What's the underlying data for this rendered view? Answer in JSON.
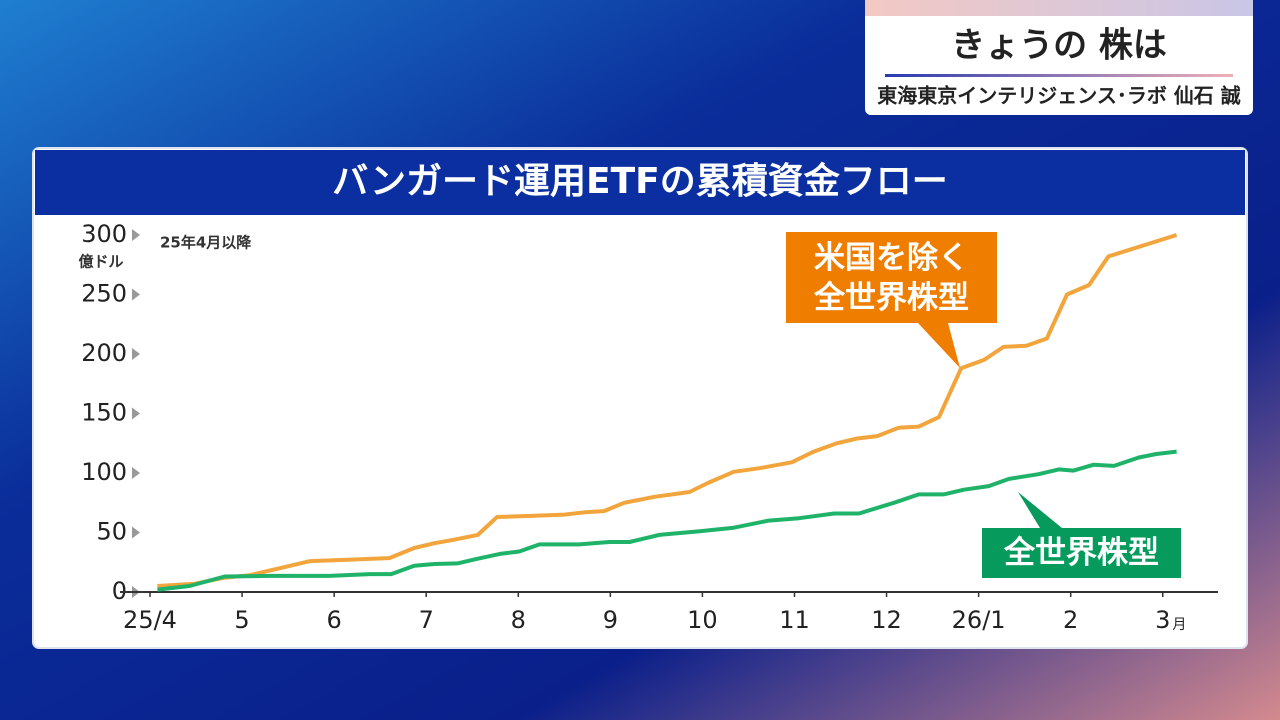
{
  "header": {
    "title": "きょうの 株は",
    "subtitle": "東海東京インテリジェンス･ラボ 仙石 誠"
  },
  "chart_data": {
    "type": "line",
    "title": "バンガード運用ETFの累積資金フロー",
    "y_unit": "億ドル",
    "note": "25年4月以降",
    "x_unit": "月",
    "xlim": [
      0,
      11.6
    ],
    "xticks": [
      {
        "value": 0,
        "label": "25/4"
      },
      {
        "value": 1,
        "label": "5"
      },
      {
        "value": 2,
        "label": "6"
      },
      {
        "value": 3,
        "label": "7"
      },
      {
        "value": 4,
        "label": "8"
      },
      {
        "value": 5,
        "label": "9"
      },
      {
        "value": 6,
        "label": "10"
      },
      {
        "value": 7,
        "label": "11"
      },
      {
        "value": 8,
        "label": "12"
      },
      {
        "value": 9,
        "label": "26/1"
      },
      {
        "value": 10,
        "label": "2"
      },
      {
        "value": 11,
        "label": "3"
      }
    ],
    "ylim": [
      0,
      300
    ],
    "yticks": [
      0,
      50,
      100,
      150,
      200,
      250,
      300
    ],
    "series": [
      {
        "name": "米国を除く全世界株型",
        "color": "#f2a53c",
        "x": [
          0.08,
          0.49,
          0.81,
          1.08,
          1.41,
          1.74,
          2.11,
          2.6,
          2.87,
          3.09,
          3.31,
          3.56,
          3.77,
          4.18,
          4.5,
          4.72,
          4.93,
          5.15,
          5.48,
          5.86,
          6.07,
          6.34,
          6.62,
          6.97,
          7.21,
          7.46,
          7.68,
          7.9,
          8.13,
          8.35,
          8.57,
          8.81,
          9.06,
          9.27,
          9.52,
          9.74,
          9.96,
          10.2,
          10.41,
          10.74,
          11.15
        ],
        "values": [
          5,
          7,
          12,
          14,
          20,
          26,
          27,
          28.5,
          37,
          41,
          44,
          48,
          63,
          64,
          65,
          67,
          68,
          75,
          80,
          84,
          92,
          101,
          104,
          109,
          118,
          125,
          129,
          131,
          138,
          139,
          147,
          188,
          195,
          206,
          207,
          213,
          250,
          258,
          282,
          290,
          300
        ]
      },
      {
        "name": "全世界株型",
        "color": "#1fb36a",
        "x": [
          0.08,
          0.43,
          0.81,
          1.3,
          1.95,
          2.39,
          2.62,
          2.87,
          3.09,
          3.34,
          3.56,
          3.8,
          4.01,
          4.23,
          4.66,
          4.99,
          5.21,
          5.53,
          5.97,
          6.34,
          6.72,
          7.05,
          7.43,
          7.7,
          8.08,
          8.35,
          8.62,
          8.84,
          9.11,
          9.33,
          9.65,
          9.87,
          10.03,
          10.25,
          10.47,
          10.74,
          10.93,
          11.15
        ],
        "values": [
          2,
          5,
          13,
          13.5,
          13.5,
          15,
          15,
          22,
          23.5,
          24,
          28,
          32,
          34,
          40,
          40,
          42,
          42,
          48,
          51,
          54,
          60,
          62,
          66,
          66,
          75,
          82,
          82,
          86,
          89,
          95,
          99,
          103,
          102,
          107,
          106,
          113,
          116,
          118
        ]
      }
    ]
  }
}
